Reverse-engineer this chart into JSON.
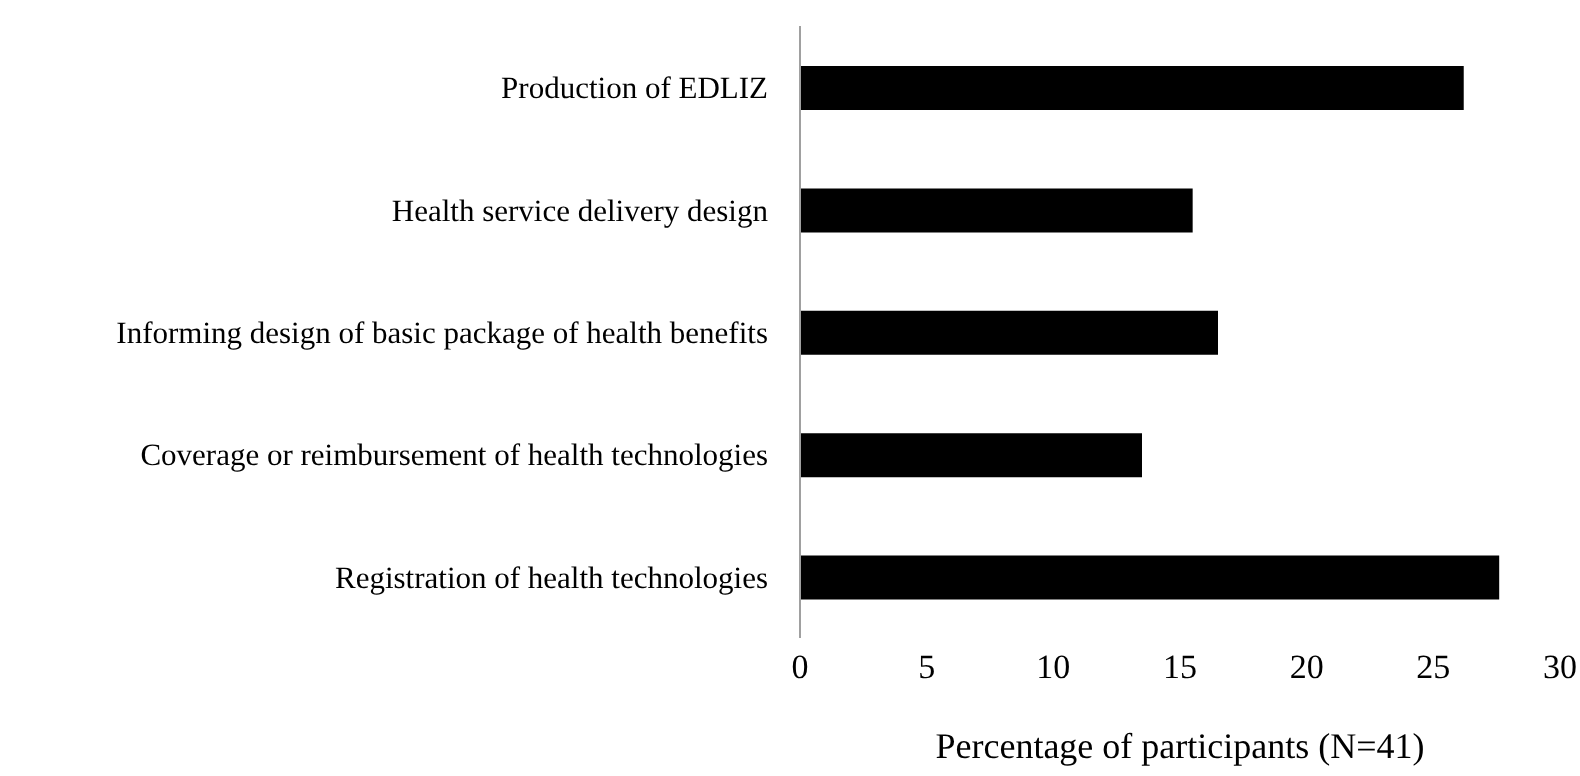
{
  "chart_data": {
    "type": "bar",
    "orientation": "horizontal",
    "xlabel": "Percentage of participants  (N=41)",
    "categories": [
      "Production of EDLIZ",
      "Health service delivery design",
      "Informing design of basic package of health benefits",
      "Coverage or reimbursement of health technologies",
      "Registration of health technologies"
    ],
    "values": [
      26.2,
      15.5,
      16.5,
      13.5,
      27.6
    ],
    "color": "#000000",
    "xlim": [
      0,
      30
    ],
    "xticks": [
      0,
      5,
      10,
      15,
      20,
      25,
      30
    ],
    "grid": false
  }
}
